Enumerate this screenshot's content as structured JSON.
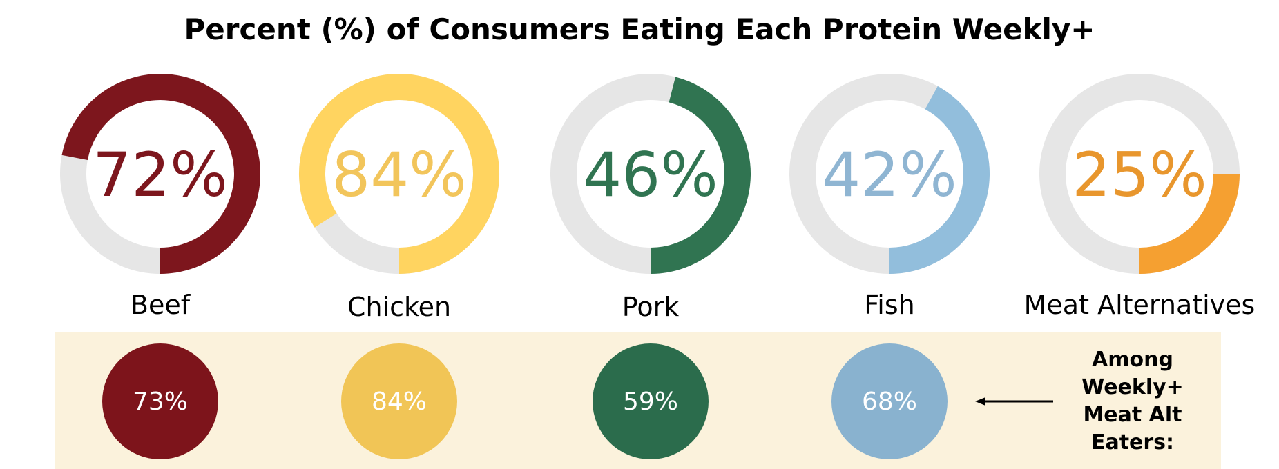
{
  "chart_data": {
    "type": "donut",
    "title": "Percent (%) of Consumers Eating Each Protein Weekly+",
    "categories": [
      "Beef",
      "Chicken",
      "Pork",
      "Fish",
      "Meat Alternatives"
    ],
    "values": [
      72,
      84,
      46,
      42,
      25
    ],
    "value_labels": [
      "72%",
      "84%",
      "46%",
      "42%",
      "25%"
    ],
    "track_color": "#e6e6e6",
    "colors": [
      "#7d161d",
      "#ffd460",
      "#307451",
      "#92bedc",
      "#f5a031"
    ],
    "text_colors": [
      "#7d161d",
      "#f2c55b",
      "#307451",
      "#8fb5d2",
      "#e8962d"
    ],
    "subgroup": {
      "label_lines": [
        "Among",
        "Weekly+",
        "Meat Alt",
        "Eaters:"
      ],
      "categories": [
        "Beef",
        "Chicken",
        "Pork",
        "Fish"
      ],
      "values": [
        73,
        84,
        59,
        68
      ],
      "value_labels": [
        "73%",
        "84%",
        "59%",
        "68%"
      ],
      "colors": [
        "#7d141b",
        "#f1c556",
        "#2b6c4c",
        "#89b2cf"
      ],
      "panel_color": "#fbf2dc"
    }
  }
}
